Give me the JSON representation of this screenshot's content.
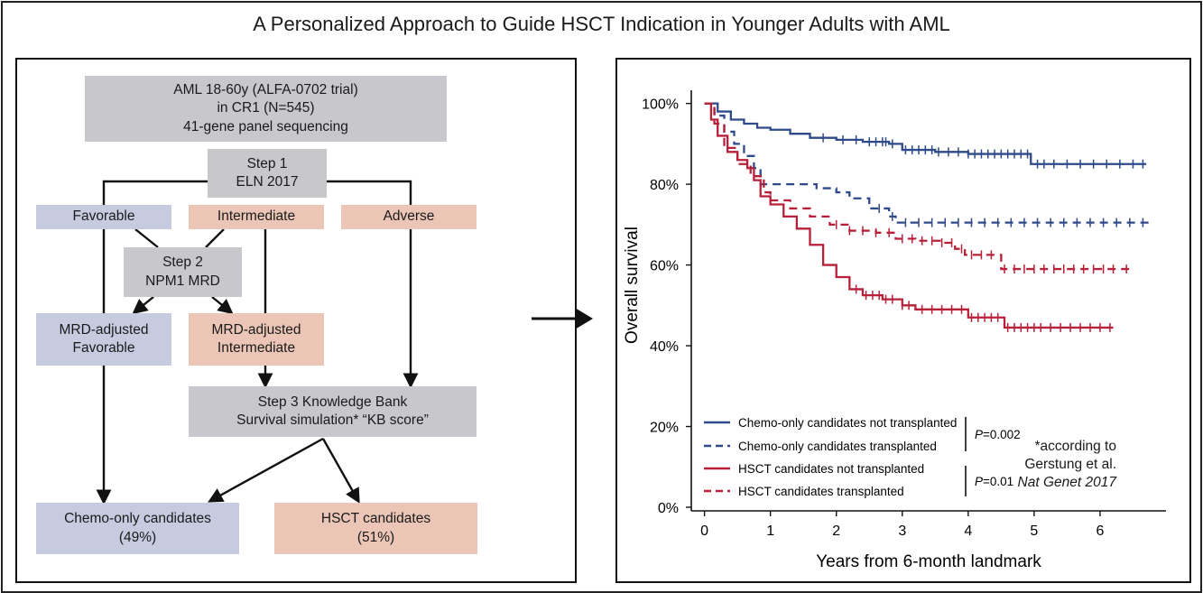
{
  "title": "A Personalized Approach to Guide HSCT Indication in Younger Adults with AML",
  "flowchart": {
    "top": [
      "AML 18-60y (ALFA-0702 trial)",
      "in CR1 (N=545)",
      "41-gene panel sequencing"
    ],
    "step1": [
      "Step 1",
      "ELN 2017"
    ],
    "favorable": "Favorable",
    "intermediate": "Intermediate",
    "adverse": "Adverse",
    "step2": [
      "Step 2",
      "NPM1 MRD"
    ],
    "mrd_favorable": [
      "MRD-adjusted",
      "Favorable"
    ],
    "mrd_intermediate": [
      "MRD-adjusted",
      "Intermediate"
    ],
    "step3": [
      "Step 3 Knowledge Bank",
      "Survival simulation* “KB score”"
    ],
    "note": [
      "*according to",
      "Gerstung et al.",
      "Nat Genet 2017"
    ],
    "chemo": [
      "Chemo-only candidates",
      "(49%)"
    ],
    "hsct": [
      "HSCT candidates",
      "(51%)"
    ]
  },
  "colors": {
    "box_gray": "#c8c7cc",
    "box_blue": "#c7cbe0",
    "box_pink": "#ebc5b6",
    "blue_series": "#2e4a8a",
    "red_series": "#b8203a"
  },
  "chart_data": {
    "type": "line",
    "subtype": "kaplan-meier",
    "xlabel": "Years from 6-month landmark",
    "ylabel": "Overall survival",
    "xlim": [
      -0.2,
      7.0
    ],
    "ylim": [
      0,
      100
    ],
    "xticks": [
      0,
      1,
      2,
      3,
      4,
      5,
      6
    ],
    "yticks": [
      0,
      20,
      40,
      60,
      80,
      100
    ],
    "ytick_labels": [
      "0%",
      "20%",
      "40%",
      "60%",
      "80%",
      "100%"
    ],
    "series": [
      {
        "name": "Chemo-only candidates not transplanted",
        "color": "#2e4a8a",
        "dash": false,
        "points": [
          [
            0,
            100
          ],
          [
            0.2,
            98
          ],
          [
            0.4,
            96
          ],
          [
            0.6,
            95
          ],
          [
            0.8,
            94
          ],
          [
            1.0,
            93.5
          ],
          [
            1.3,
            92.5
          ],
          [
            1.6,
            91.5
          ],
          [
            2.0,
            91
          ],
          [
            2.4,
            90.5
          ],
          [
            2.8,
            90
          ],
          [
            3.0,
            88.5
          ],
          [
            3.5,
            88
          ],
          [
            4.0,
            87.5
          ],
          [
            4.5,
            87.5
          ],
          [
            4.9,
            87.5
          ],
          [
            4.95,
            85
          ],
          [
            5.5,
            85
          ],
          [
            6.0,
            85
          ],
          [
            6.7,
            85
          ]
        ],
        "censored": [
          1.8,
          2.1,
          2.3,
          2.5,
          2.6,
          2.7,
          2.75,
          2.85,
          3.05,
          3.15,
          3.25,
          3.35,
          3.45,
          3.55,
          3.7,
          3.85,
          4.0,
          4.1,
          4.2,
          4.3,
          4.4,
          4.5,
          4.6,
          4.7,
          4.8,
          4.9,
          5.05,
          5.15,
          5.3,
          5.5,
          5.7,
          5.9,
          6.1,
          6.3,
          6.5,
          6.65
        ]
      },
      {
        "name": "Chemo-only candidates transplanted",
        "color": "#2e4a8a",
        "dash": true,
        "points": [
          [
            0,
            100
          ],
          [
            0.15,
            97
          ],
          [
            0.3,
            93
          ],
          [
            0.45,
            90
          ],
          [
            0.6,
            87
          ],
          [
            0.75,
            84
          ],
          [
            0.85,
            80
          ],
          [
            1.2,
            80
          ],
          [
            1.5,
            80
          ],
          [
            1.7,
            79
          ],
          [
            2.0,
            78
          ],
          [
            2.2,
            76.5
          ],
          [
            2.5,
            74
          ],
          [
            2.8,
            72
          ],
          [
            2.9,
            70.5
          ],
          [
            3.5,
            70.5
          ],
          [
            4.5,
            70.5
          ],
          [
            6.8,
            70.5
          ]
        ],
        "censored": [
          2.65,
          2.85,
          3.05,
          3.25,
          3.45,
          3.65,
          3.85,
          4.05,
          4.25,
          4.45,
          4.65,
          4.85,
          5.05,
          5.25,
          5.45,
          5.65,
          5.85,
          6.05,
          6.25,
          6.45,
          6.65
        ]
      },
      {
        "name": "HSCT candidates not transplanted",
        "color": "#b8203a",
        "dash": false,
        "points": [
          [
            0,
            100
          ],
          [
            0.1,
            96
          ],
          [
            0.2,
            92
          ],
          [
            0.35,
            88
          ],
          [
            0.5,
            86
          ],
          [
            0.65,
            84
          ],
          [
            0.75,
            81
          ],
          [
            0.85,
            77
          ],
          [
            1.0,
            75
          ],
          [
            1.2,
            72
          ],
          [
            1.4,
            69
          ],
          [
            1.6,
            65
          ],
          [
            1.8,
            60
          ],
          [
            2.0,
            57
          ],
          [
            2.2,
            54
          ],
          [
            2.4,
            52.5
          ],
          [
            2.7,
            51.5
          ],
          [
            3.0,
            50
          ],
          [
            3.2,
            49
          ],
          [
            3.6,
            49
          ],
          [
            3.9,
            49
          ],
          [
            4.0,
            47
          ],
          [
            4.3,
            47
          ],
          [
            4.5,
            47
          ],
          [
            4.55,
            44.5
          ],
          [
            5.0,
            44.5
          ],
          [
            6.2,
            44.5
          ]
        ],
        "censored": [
          2.3,
          2.45,
          2.55,
          2.65,
          2.75,
          2.85,
          3.0,
          3.1,
          3.3,
          3.45,
          3.6,
          3.75,
          3.9,
          4.05,
          4.15,
          4.25,
          4.35,
          4.45,
          4.6,
          4.7,
          4.8,
          4.9,
          5.0,
          5.1,
          5.25,
          5.4,
          5.55,
          5.7,
          5.85,
          6.0,
          6.15
        ]
      },
      {
        "name": "HSCT candidates transplanted",
        "color": "#b8203a",
        "dash": true,
        "points": [
          [
            0,
            100
          ],
          [
            0.15,
            95
          ],
          [
            0.3,
            89
          ],
          [
            0.5,
            85
          ],
          [
            0.7,
            82
          ],
          [
            0.9,
            78
          ],
          [
            1.0,
            76
          ],
          [
            1.3,
            74
          ],
          [
            1.6,
            72
          ],
          [
            1.9,
            70
          ],
          [
            2.2,
            68.5
          ],
          [
            2.6,
            68
          ],
          [
            2.9,
            66.5
          ],
          [
            3.2,
            66
          ],
          [
            3.6,
            65.5
          ],
          [
            3.8,
            64
          ],
          [
            3.95,
            62.5
          ],
          [
            4.5,
            62.5
          ],
          [
            4.5,
            59
          ],
          [
            5.0,
            59
          ],
          [
            6.5,
            59
          ]
        ],
        "censored": [
          2.0,
          2.2,
          2.4,
          2.6,
          2.8,
          3.0,
          3.15,
          3.3,
          3.45,
          3.6,
          3.75,
          3.9,
          4.05,
          4.2,
          4.35,
          4.55,
          4.7,
          4.85,
          5.0,
          5.15,
          5.3,
          5.45,
          5.6,
          5.75,
          5.9,
          6.05,
          6.2,
          6.4
        ]
      }
    ],
    "pvalues": [
      {
        "label": "P",
        "value": "=0.002",
        "groups": [
          0,
          1
        ]
      },
      {
        "label": "P",
        "value": "=0.01",
        "groups": [
          2,
          3
        ]
      }
    ]
  }
}
